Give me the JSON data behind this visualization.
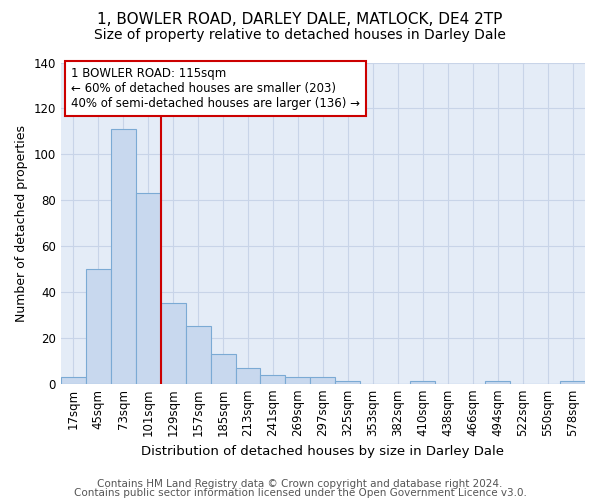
{
  "title1": "1, BOWLER ROAD, DARLEY DALE, MATLOCK, DE4 2TP",
  "title2": "Size of property relative to detached houses in Darley Dale",
  "xlabel": "Distribution of detached houses by size in Darley Dale",
  "ylabel": "Number of detached properties",
  "categories": [
    "17sqm",
    "45sqm",
    "73sqm",
    "101sqm",
    "129sqm",
    "157sqm",
    "185sqm",
    "213sqm",
    "241sqm",
    "269sqm",
    "297sqm",
    "325sqm",
    "353sqm",
    "382sqm",
    "410sqm",
    "438sqm",
    "466sqm",
    "494sqm",
    "522sqm",
    "550sqm",
    "578sqm"
  ],
  "values": [
    3,
    50,
    111,
    83,
    35,
    25,
    13,
    7,
    4,
    3,
    3,
    1,
    0,
    0,
    1,
    0,
    0,
    1,
    0,
    0,
    1
  ],
  "bar_color": "#c8d8ee",
  "bar_edge_color": "#7baad4",
  "red_line_x": 3.5,
  "annotation_line1": "1 BOWLER ROAD: 115sqm",
  "annotation_line2": "← 60% of detached houses are smaller (203)",
  "annotation_line3": "40% of semi-detached houses are larger (136) →",
  "annotation_box_color": "#ffffff",
  "annotation_box_edge_color": "#cc0000",
  "red_line_color": "#cc0000",
  "background_color": "#ffffff",
  "plot_bg_color": "#e4ecf7",
  "grid_color": "#c8d4e8",
  "footer1": "Contains HM Land Registry data © Crown copyright and database right 2024.",
  "footer2": "Contains public sector information licensed under the Open Government Licence v3.0.",
  "ylim": [
    0,
    140
  ],
  "title1_fontsize": 11,
  "title2_fontsize": 10,
  "xlabel_fontsize": 9.5,
  "ylabel_fontsize": 9,
  "tick_fontsize": 8.5,
  "annotation_fontsize": 8.5,
  "footer_fontsize": 7.5
}
